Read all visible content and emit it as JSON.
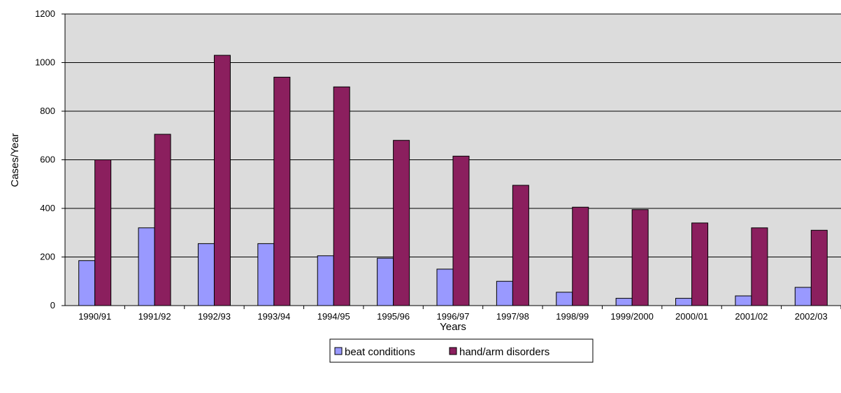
{
  "chart_data": {
    "type": "bar",
    "title": "",
    "xlabel": "Years",
    "ylabel": "Cases/Year",
    "ylim": [
      0,
      1200
    ],
    "yticks": [
      0,
      200,
      400,
      600,
      800,
      1000,
      1200
    ],
    "ytick_labels": [
      "0",
      "200",
      "400",
      "600",
      "800",
      "1000",
      "1200"
    ],
    "grid": true,
    "legend_position": "bottom",
    "categories": [
      "1990/91",
      "1991/92",
      "1992/93",
      "1993/94",
      "1994/95",
      "1995/96",
      "1996/97",
      "1997/98",
      "1998/99",
      "1999/2000",
      "2000/01",
      "2001/02",
      "2002/03"
    ],
    "series": [
      {
        "name": "beat conditions",
        "color": "#9999ff",
        "values": [
          185,
          320,
          255,
          255,
          205,
          195,
          150,
          100,
          55,
          30,
          30,
          40,
          75
        ]
      },
      {
        "name": "hand/arm disorders",
        "color": "#8b1f5e",
        "values": [
          600,
          705,
          1030,
          940,
          900,
          680,
          615,
          495,
          405,
          395,
          340,
          320,
          310
        ]
      }
    ],
    "plot_background": "#dcdcdc"
  }
}
